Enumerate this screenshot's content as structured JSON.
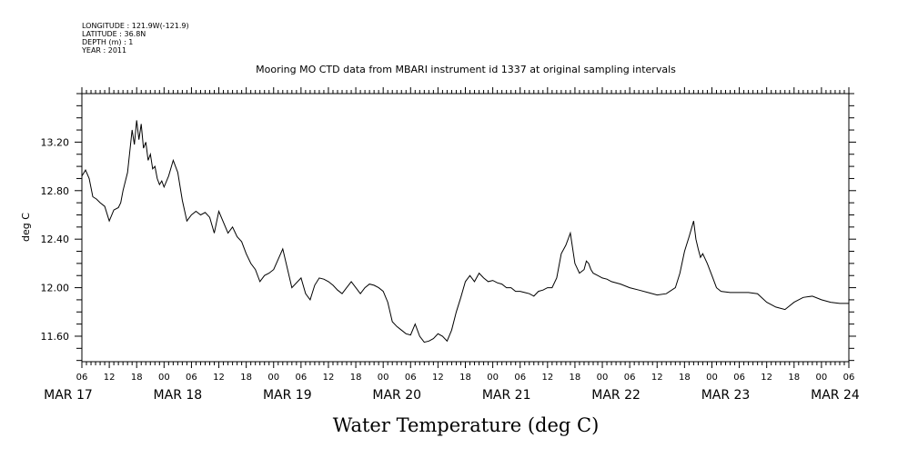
{
  "header": {
    "longitude": "LONGITUDE : 121.9W(-121.9)",
    "latitude": "LATITUDE : 36.8N",
    "depth": "DEPTH (m) : 1",
    "year": "YEAR : 2011"
  },
  "chart_data": {
    "type": "line",
    "title": "Mooring MO CTD data from MBARI instrument id 1337 at original sampling intervals",
    "xlabel": "Water Temperature (deg C)",
    "ylabel": "deg C",
    "xlim": [
      6,
      174
    ],
    "ylim": [
      11.39,
      13.6
    ],
    "yticks": [
      11.6,
      12.0,
      12.4,
      12.8,
      13.2
    ],
    "ytick_labels": [
      "11.60",
      "12.00",
      "12.40",
      "12.80",
      "13.20"
    ],
    "hour_tick_labels": [
      "06",
      "12",
      "18",
      "00",
      "06",
      "12",
      "18",
      "00",
      "06",
      "12",
      "18",
      "00",
      "06",
      "12",
      "18",
      "00",
      "06",
      "12",
      "18",
      "00",
      "06",
      "12",
      "18",
      "00",
      "06",
      "12",
      "18",
      "00",
      "06"
    ],
    "day_labels": [
      "MAR 17",
      "MAR 18",
      "MAR 19",
      "MAR 20",
      "MAR 21",
      "MAR 22",
      "MAR 23",
      "MAR 24"
    ],
    "x_unit": "hours since 2011-03-17 00:00",
    "series": [
      {
        "name": "",
        "x": [
          6,
          6.8,
          7.6,
          8.4,
          9.2,
          10,
          11,
          12,
          13,
          14,
          14.5,
          15,
          16,
          17,
          17.5,
          18,
          18.5,
          19,
          19.5,
          20,
          20.5,
          21,
          21.5,
          22,
          22.5,
          23,
          23.5,
          24,
          25,
          26,
          27,
          28,
          29,
          30,
          31,
          32,
          33,
          34,
          35,
          36,
          38,
          39,
          40,
          41,
          42,
          43,
          44,
          45,
          46,
          47,
          48,
          50,
          52,
          54,
          55,
          56,
          57,
          58,
          59,
          60,
          61,
          62,
          63,
          64,
          65,
          66,
          67,
          68,
          69,
          70,
          71,
          72,
          73,
          74,
          75,
          76,
          77,
          78,
          79,
          80,
          81,
          82,
          83,
          84,
          85,
          86,
          87,
          88,
          89,
          90,
          91,
          92,
          93,
          94,
          95,
          96,
          97,
          98,
          99,
          100,
          101,
          102,
          103,
          104,
          105,
          106,
          107,
          108,
          109,
          110,
          111,
          112,
          113,
          114,
          115,
          116,
          116.5,
          117,
          117.5,
          118,
          119,
          120,
          121,
          122,
          124,
          126,
          128,
          130,
          132,
          134,
          136,
          137,
          138,
          139,
          140,
          140.5,
          141,
          141.5,
          142,
          143,
          144,
          145,
          146,
          148,
          150,
          152,
          154,
          156,
          158,
          160,
          162,
          164,
          166,
          168,
          170,
          172,
          174
        ],
        "y": [
          12.92,
          12.97,
          12.9,
          12.75,
          12.73,
          12.7,
          12.67,
          12.55,
          12.64,
          12.66,
          12.7,
          12.8,
          12.95,
          13.3,
          13.18,
          13.38,
          13.22,
          13.35,
          13.15,
          13.2,
          13.05,
          13.1,
          12.98,
          13.0,
          12.9,
          12.85,
          12.88,
          12.83,
          12.92,
          13.05,
          12.95,
          12.72,
          12.55,
          12.6,
          12.63,
          12.6,
          12.62,
          12.58,
          12.45,
          12.63,
          12.45,
          12.5,
          12.42,
          12.38,
          12.28,
          12.2,
          12.15,
          12.05,
          12.1,
          12.12,
          12.15,
          12.32,
          12.0,
          12.08,
          11.95,
          11.9,
          12.02,
          12.08,
          12.07,
          12.05,
          12.02,
          11.98,
          11.95,
          12.0,
          12.05,
          12.0,
          11.95,
          12.0,
          12.03,
          12.02,
          12.0,
          11.97,
          11.88,
          11.72,
          11.68,
          11.65,
          11.62,
          11.61,
          11.7,
          11.6,
          11.55,
          11.56,
          11.58,
          11.62,
          11.6,
          11.56,
          11.65,
          11.8,
          11.92,
          12.05,
          12.1,
          12.05,
          12.12,
          12.08,
          12.05,
          12.06,
          12.04,
          12.03,
          12.0,
          12.0,
          11.97,
          11.97,
          11.96,
          11.95,
          11.93,
          11.97,
          11.98,
          12.0,
          12.0,
          12.08,
          12.28,
          12.35,
          12.45,
          12.2,
          12.12,
          12.15,
          12.22,
          12.2,
          12.15,
          12.12,
          12.1,
          12.08,
          12.07,
          12.05,
          12.03,
          12.0,
          11.98,
          11.96,
          11.94,
          11.95,
          12.0,
          12.12,
          12.3,
          12.42,
          12.55,
          12.4,
          12.32,
          12.25,
          12.28,
          12.2,
          12.1,
          12.0,
          11.97,
          11.96,
          11.96,
          11.96,
          11.95,
          11.88,
          11.84,
          11.82,
          11.88,
          11.92,
          11.93,
          11.9,
          11.88,
          11.87,
          11.87
        ]
      }
    ]
  }
}
